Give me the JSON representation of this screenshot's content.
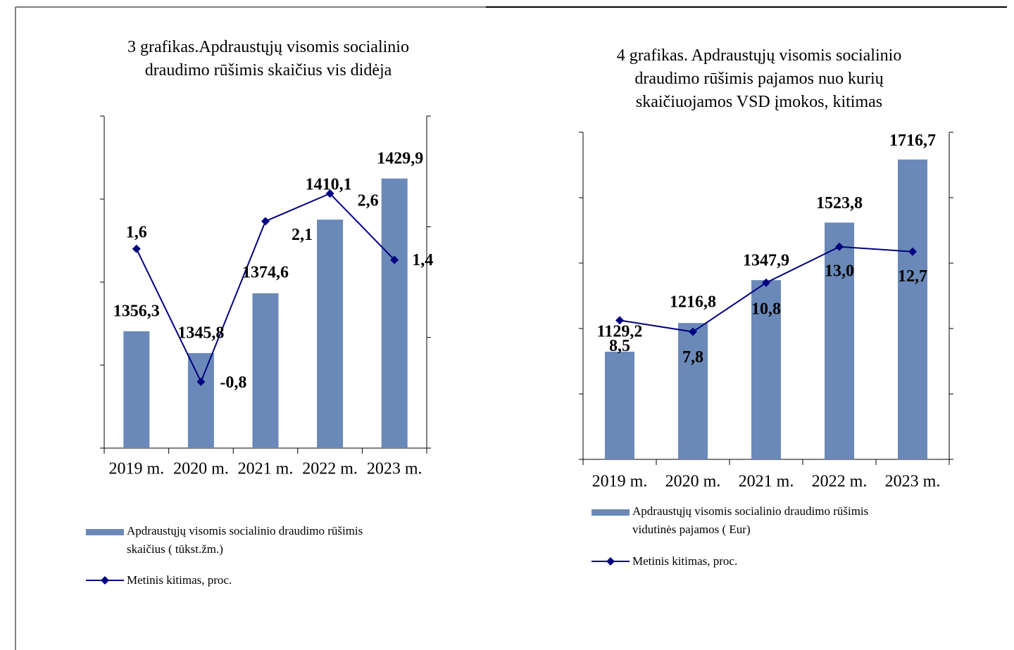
{
  "chart_data": [
    {
      "type": "bar_line",
      "title": "3 grafikas.Apdraustųjų visomis socialinio\ndraudimo rūšimis skaičius vis didėja",
      "categories": [
        "2019 m.",
        "2020 m.",
        "2021 m.",
        "2022 m.",
        "2023 m."
      ],
      "series": [
        {
          "name": "Apdraustųjų visomis socialinio draudimo rūšimis\nskaičius ( tūkst.žm.)",
          "type": "bar",
          "color": "#6a89b8",
          "values": [
            1356.3,
            1345.8,
            1374.6,
            1410.1,
            1429.9
          ],
          "value_labels": [
            "1356,3",
            "1345,8",
            "1374,6",
            "1410,1",
            "1429,9"
          ]
        },
        {
          "name": "Metinis kitimas, proc.",
          "type": "line",
          "axis": "y2",
          "color": "#000080",
          "values": [
            1.6,
            -0.8,
            2.1,
            2.6,
            1.4
          ],
          "value_labels": [
            "1,6",
            "-0,8",
            "2,1",
            "2,6",
            "1,4"
          ]
        }
      ],
      "ylim": [
        1300,
        1460
      ],
      "yticks": [
        1300,
        1340,
        1380,
        1420,
        1460
      ],
      "y2lim": [
        -2,
        4
      ],
      "y2ticks": [
        -2,
        0,
        2,
        4
      ]
    },
    {
      "type": "bar_line",
      "title": "4 grafikas. Apdraustųjų visomis socialinio\ndraudimo rūšimis pajamos nuo kurių\nskaičiuojamos VSD įmokos, kitimas",
      "categories": [
        "2019 m.",
        "2020 m.",
        "2021 m.",
        "2022 m.",
        "2023 m."
      ],
      "series": [
        {
          "name": "Apdraustųjų visomis socialinio draudimo rūšimis\nvidutinės pajamos ( Eur)",
          "type": "bar",
          "color": "#6a89b8",
          "values": [
            1129.2,
            1216.8,
            1347.9,
            1523.8,
            1716.7
          ],
          "value_labels": [
            "1129,2",
            "1216,8",
            "1347,9",
            "1523,8",
            "1716,7"
          ]
        },
        {
          "name": "Metinis kitimas, proc.",
          "type": "line",
          "axis": "y2",
          "color": "#000080",
          "values": [
            8.5,
            7.8,
            10.8,
            13.0,
            12.7
          ],
          "value_labels": [
            "8,5",
            "7,8",
            "10,8",
            "13,0",
            "12,7"
          ]
        }
      ],
      "ylim": [
        800,
        1800
      ],
      "yticks": [
        800,
        1000,
        1200,
        1400,
        1600,
        1800
      ],
      "y2lim": [
        0,
        20
      ],
      "y2ticks": [
        0,
        4,
        8,
        12,
        16,
        20
      ]
    }
  ]
}
